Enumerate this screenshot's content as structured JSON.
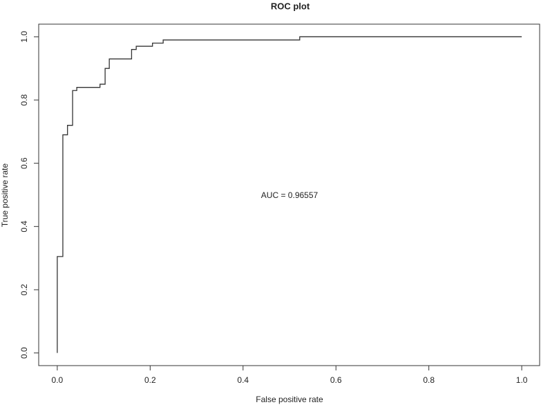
{
  "chart_data": {
    "type": "line",
    "title": "ROC plot",
    "x_label": "False positive rate",
    "y_label": "True positive rate",
    "annotation": "AUC =  0.96557",
    "x": [
      0,
      0,
      0.012,
      0.012,
      0.022,
      0.022,
      0.033,
      0.033,
      0.042,
      0.042,
      0.092,
      0.092,
      0.103,
      0.103,
      0.112,
      0.112,
      0.16,
      0.16,
      0.17,
      0.17,
      0.205,
      0.205,
      0.228,
      0.228,
      0.522,
      0.522,
      1
    ],
    "series": [
      {
        "color": "#333333",
        "values": [
          0,
          0.305,
          0.305,
          0.69,
          0.69,
          0.72,
          0.72,
          0.83,
          0.83,
          0.84,
          0.84,
          0.85,
          0.85,
          0.9,
          0.9,
          0.93,
          0.93,
          0.96,
          0.96,
          0.97,
          0.97,
          0.98,
          0.98,
          0.99,
          0.99,
          1,
          1
        ]
      }
    ],
    "xlim": [
      -0.04,
      1.04
    ],
    "ylim": [
      -0.04,
      1.04
    ],
    "xticks": [
      {
        "value": 0,
        "label": "0.0"
      },
      {
        "value": 0.2,
        "label": "0.2"
      },
      {
        "value": 0.4,
        "label": "0.4"
      },
      {
        "value": 0.6,
        "label": "0.6"
      },
      {
        "value": 0.8,
        "label": "0.8"
      },
      {
        "value": 1,
        "label": "1.0"
      }
    ],
    "yticks": [
      {
        "value": 0,
        "label": "0.0"
      },
      {
        "value": 0.2,
        "label": "0.2"
      },
      {
        "value": 0.4,
        "label": "0.4"
      },
      {
        "value": 0.6,
        "label": "0.6"
      },
      {
        "value": 0.8,
        "label": "0.8"
      },
      {
        "value": 1,
        "label": "1.0"
      }
    ],
    "grid": false
  }
}
